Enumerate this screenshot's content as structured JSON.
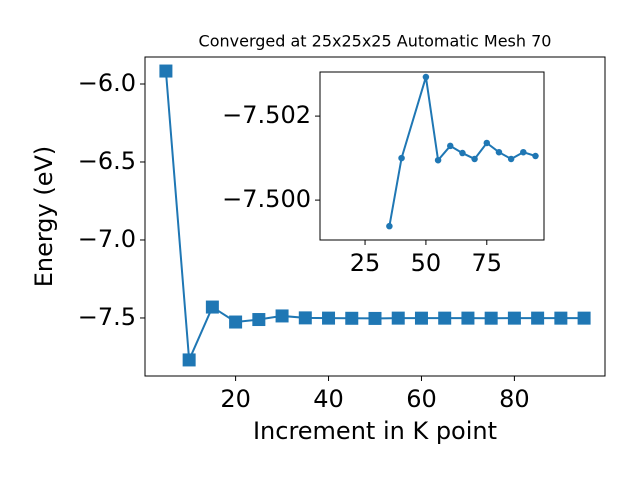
{
  "chart_data": [
    {
      "type": "line",
      "title": "Converged at 25x25x25 Automatic Mesh 70",
      "x_label": "Increment in K point",
      "y_label": "Energy (eV)",
      "x": [
        5,
        10,
        15,
        20,
        25,
        30,
        35,
        40,
        45,
        50,
        55,
        60,
        65,
        70,
        75,
        80,
        85,
        90,
        95
      ],
      "series": [
        {
          "color": "#1f77b4",
          "marker": "square",
          "values": [
            -5.917,
            -7.769,
            -7.43,
            -7.526,
            -7.51,
            -7.487,
            -7.4994,
            -7.501,
            -7.502,
            -7.5029,
            -7.501,
            -7.5013,
            -7.5011,
            -7.501,
            -7.5014,
            -7.5011,
            -7.501,
            -7.5011,
            -7.5011
          ]
        }
      ],
      "xlim": [
        0.5,
        99.5
      ],
      "xticks": [
        20,
        40,
        60,
        80
      ],
      "ylim": [
        -7.872,
        -5.827
      ],
      "yticks": [
        {
          "value": -6.0,
          "label": "−6.0"
        },
        {
          "value": -6.5,
          "label": "−6.5"
        },
        {
          "value": -7.0,
          "label": "−7.0"
        },
        {
          "value": -7.5,
          "label": "−7.5"
        }
      ]
    },
    {
      "type": "line",
      "x": [
        35,
        40,
        50,
        55,
        60,
        65,
        70,
        75,
        80,
        85,
        90,
        95
      ],
      "series": [
        {
          "color": "#1f77b4",
          "marker": "circle",
          "values": [
            -7.49938,
            -7.501,
            -7.50293,
            -7.50095,
            -7.50129,
            -7.50112,
            -7.50098,
            -7.50136,
            -7.50114,
            -7.50098,
            -7.50114,
            -7.50105
          ]
        }
      ],
      "xlim": [
        6.5,
        98.5
      ],
      "xticks": [
        25,
        50,
        75
      ],
      "ylim": [
        -7.49905,
        -7.50305
      ],
      "yticks": [
        {
          "value": -7.502,
          "label": "−7.502"
        },
        {
          "value": -7.5,
          "label": "−7.500"
        }
      ]
    }
  ]
}
